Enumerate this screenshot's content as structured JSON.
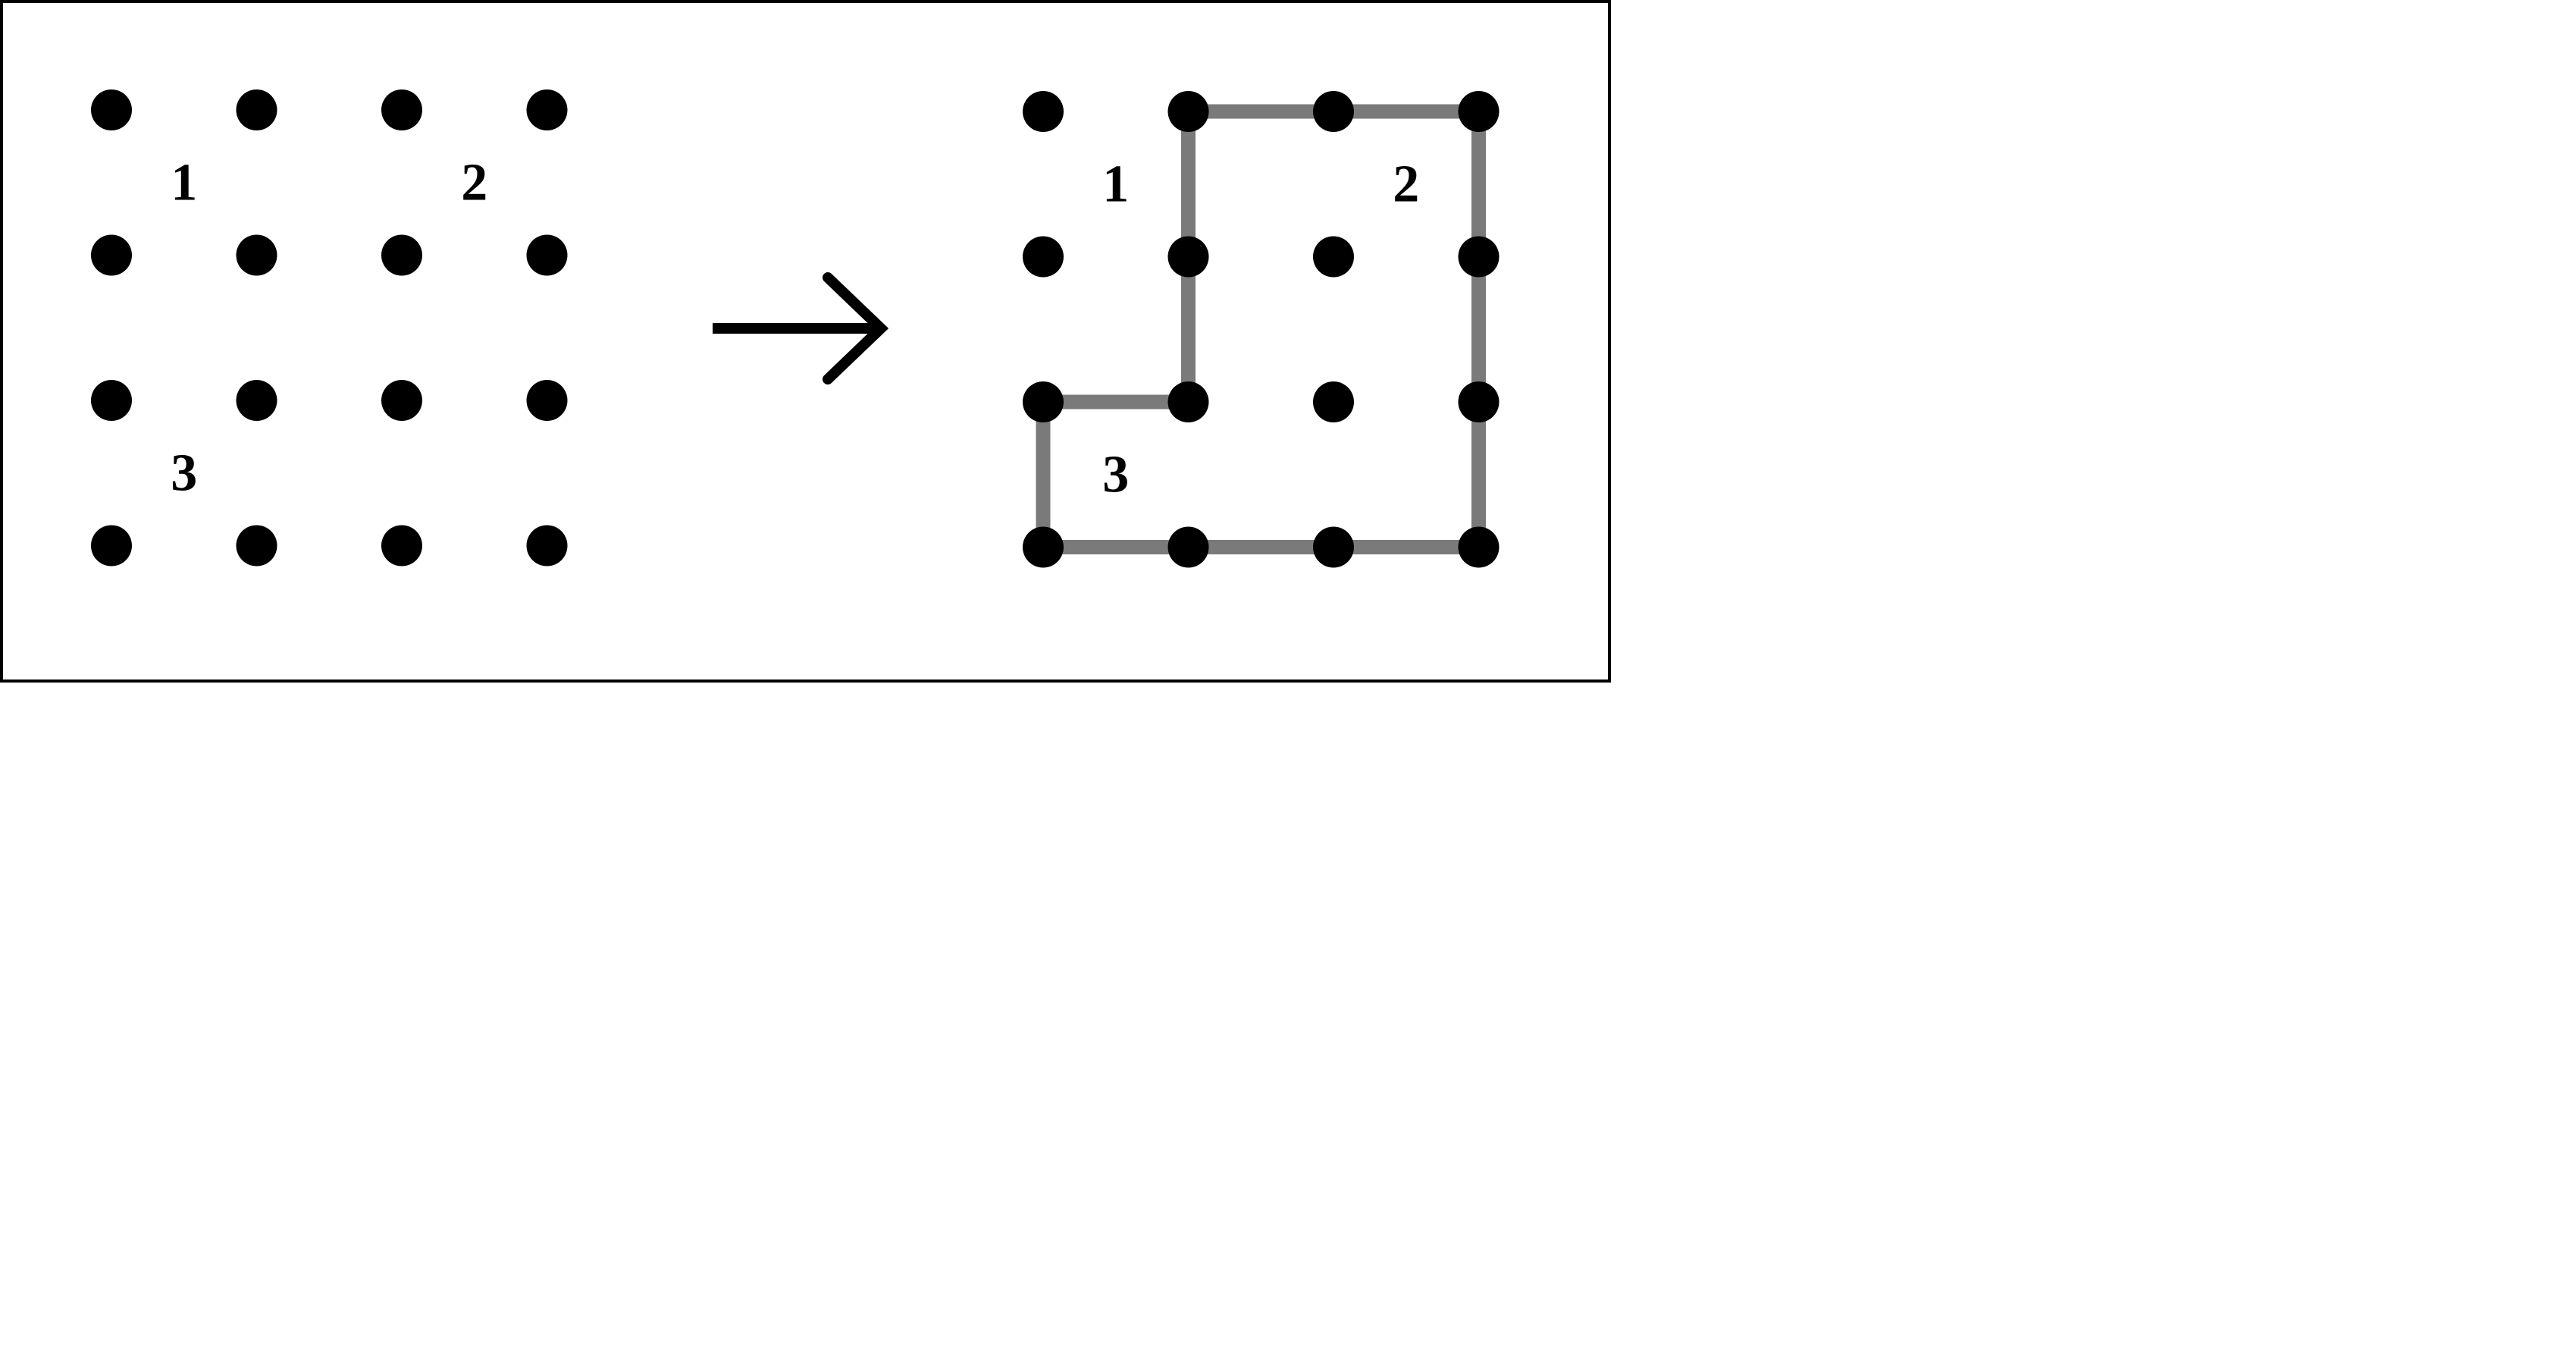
{
  "colors": {
    "dot": "#000000",
    "path": "#7a7a7a",
    "arrow": "#000000",
    "frame": "#000000",
    "background": "#ffffff"
  },
  "puzzle": {
    "grid": {
      "rows": 4,
      "cols": 4
    },
    "clues": [
      {
        "row": 0,
        "col": 0,
        "label": "1"
      },
      {
        "row": 0,
        "col": 2,
        "label": "2"
      },
      {
        "row": 2,
        "col": 0,
        "label": "3"
      }
    ]
  },
  "solution": {
    "grid": {
      "rows": 4,
      "cols": 4
    },
    "clues": [
      {
        "row": 0,
        "col": 0,
        "label": "1"
      },
      {
        "row": 0,
        "col": 2,
        "label": "2"
      },
      {
        "row": 2,
        "col": 0,
        "label": "3"
      }
    ],
    "loop": [
      [
        0,
        1
      ],
      [
        0,
        2
      ],
      [
        0,
        3
      ],
      [
        1,
        3
      ],
      [
        2,
        3
      ],
      [
        3,
        3
      ],
      [
        3,
        2
      ],
      [
        3,
        1
      ],
      [
        3,
        0
      ],
      [
        2,
        0
      ],
      [
        2,
        1
      ],
      [
        1,
        1
      ],
      [
        0,
        1
      ]
    ]
  },
  "arrow": {
    "icon": "right-arrow-icon"
  }
}
